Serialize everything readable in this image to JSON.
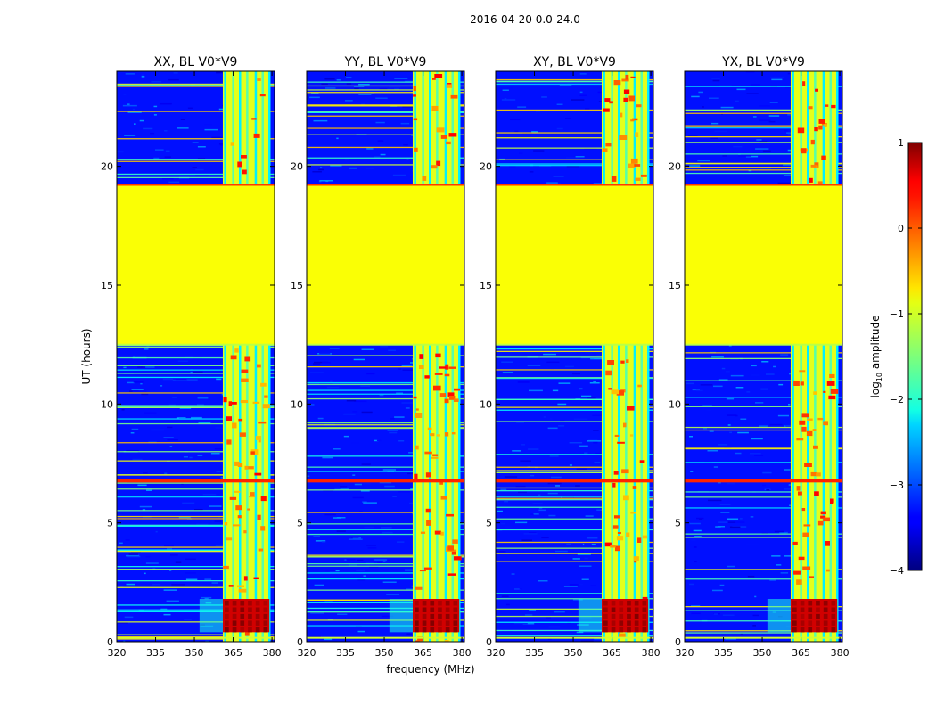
{
  "chart_data": {
    "type": "heatmap",
    "suptitle": "2016-04-20 0.0-24.0",
    "xlabel": "frequency (MHz)",
    "ylabel": "UT (hours)",
    "xlim": [
      320,
      381
    ],
    "ylim": [
      0,
      24
    ],
    "xticks": [
      320,
      335,
      350,
      365,
      380
    ],
    "yticks": [
      0,
      5,
      10,
      15,
      20
    ],
    "panels": [
      {
        "title": "XX, BL V0*V9"
      },
      {
        "title": "YY, BL V0*V9"
      },
      {
        "title": "XY, BL V0*V9"
      },
      {
        "title": "YX, BL V0*V9"
      }
    ],
    "colorbar": {
      "label_prefix": "log",
      "label_sub": "10",
      "label_suffix": " amplitude",
      "range": [
        -4,
        1
      ],
      "ticks": [
        1,
        0,
        -1,
        -2,
        -3,
        -4
      ],
      "tick_labels": [
        "1",
        "0",
        "−1",
        "−2",
        "−3",
        "−4"
      ],
      "colormap": "jet"
    },
    "features": {
      "gap_band_hours": [
        12.5,
        19.2
      ],
      "gap_value": -0.9,
      "background_value": -3.3,
      "rfi_band_mhz": [
        361,
        379
      ],
      "rfi_band_value": -1.0,
      "hot_block_hours": [
        0.4,
        1.8
      ],
      "hot_block_value": 0.6,
      "strong_rfi_hours": [
        6.7,
        6.85
      ],
      "strong_rfi_value": 0.2
    }
  }
}
